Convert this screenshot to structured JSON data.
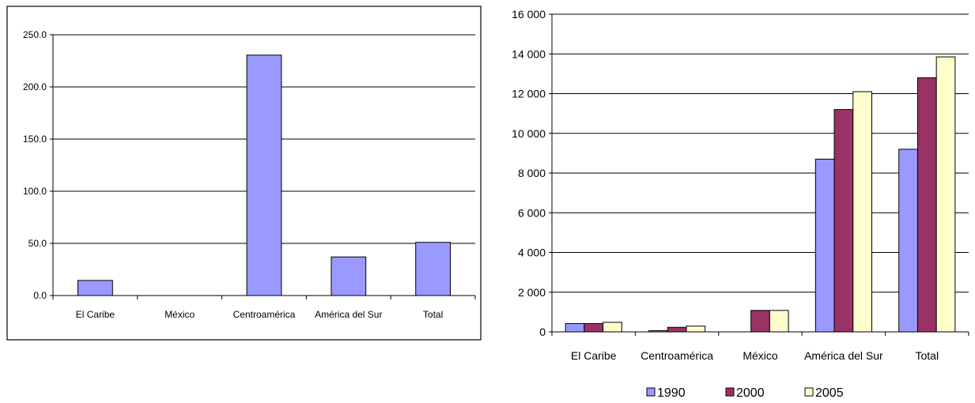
{
  "chart_data": [
    {
      "type": "bar",
      "categories": [
        "El Caribe",
        "México",
        "Centroamérica",
        "América del Sur",
        "Total"
      ],
      "values": [
        14.5,
        0,
        230.5,
        37,
        51
      ],
      "ylim": [
        0,
        250
      ],
      "yticks": [
        "0.0",
        "50.0",
        "100.0",
        "150.0",
        "200.0",
        "250.0"
      ],
      "ytick_values": [
        0,
        50,
        100,
        150,
        200,
        250
      ],
      "grid": true,
      "bordered": true,
      "bar_color": "#9999ff"
    },
    {
      "type": "bar",
      "categories": [
        "El Caribe",
        "Centroamérica",
        "México",
        "América del Sur",
        "Total"
      ],
      "series": [
        {
          "name": "1990",
          "color": "#9999ff",
          "values": [
            420,
            60,
            0,
            8700,
            9200
          ]
        },
        {
          "name": "2000",
          "color": "#993366",
          "values": [
            420,
            230,
            1080,
            11200,
            12800
          ]
        },
        {
          "name": "2005",
          "color": "#ffffcc",
          "values": [
            480,
            290,
            1080,
            12100,
            13850
          ]
        }
      ],
      "ylim": [
        0,
        16000
      ],
      "yticks": [
        "0",
        "2 000",
        "4 000",
        "6 000",
        "8 000",
        "10 000",
        "12 000",
        "14 000",
        "16 000"
      ],
      "ytick_values": [
        0,
        2000,
        4000,
        6000,
        8000,
        10000,
        12000,
        14000,
        16000
      ],
      "grid": true,
      "legend_position": "bottom"
    }
  ]
}
